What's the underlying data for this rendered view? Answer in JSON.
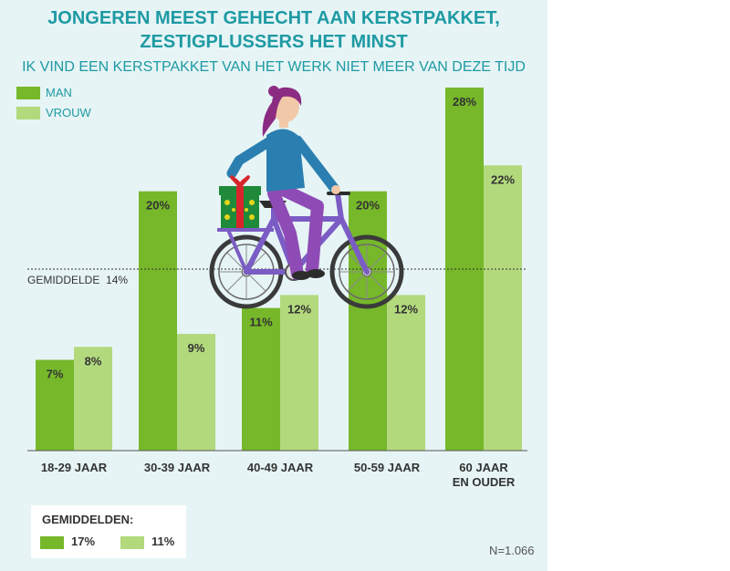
{
  "title_line1": "JONGEREN MEEST GEHECHT AAN KERSTPAKKET,",
  "title_line2": "ZESTIGPLUSSERS HET MINST",
  "subtitle": "IK VIND EEN KERSTPAKKET VAN HET WERK NIET MEER VAN DEZE TIJD",
  "colors": {
    "man": "#76b82a",
    "vrouw": "#b3d97d",
    "teal": "#1e9aa3",
    "panel": "#e6f4f5"
  },
  "chart_data": {
    "type": "bar",
    "title": "JONGEREN MEEST GEHECHT AAN KERSTPAKKET, ZESTIGPLUSSERS HET MINST",
    "subtitle": "IK VIND EEN KERSTPAKKET VAN HET WERK NIET MEER VAN DEZE TIJD",
    "categories": [
      [
        "18-29 JAAR"
      ],
      [
        "30-39 JAAR"
      ],
      [
        "40-49 JAAR"
      ],
      [
        "50-59 JAAR"
      ],
      [
        "60 JAAR",
        "EN OUDER"
      ]
    ],
    "series": [
      {
        "name": "MAN",
        "values": [
          7,
          20,
          11,
          20,
          28
        ],
        "labels": [
          "7%",
          "20%",
          "11%",
          "20%",
          "28%"
        ]
      },
      {
        "name": "VROUW",
        "values": [
          8,
          9,
          12,
          12,
          22
        ],
        "labels": [
          "8%",
          "9%",
          "12%",
          "12%",
          "22%"
        ]
      }
    ],
    "reference_line": {
      "label": "GEMIDDELDE  14%",
      "value": 14
    },
    "ylim": [
      0,
      28
    ],
    "legend_position": "top-left",
    "averages_title": "GEMIDDELDEN:",
    "averages": [
      {
        "series": "MAN",
        "label": "17%"
      },
      {
        "series": "VROUW",
        "label": "11%"
      }
    ],
    "sample_note": "N=1.066"
  }
}
